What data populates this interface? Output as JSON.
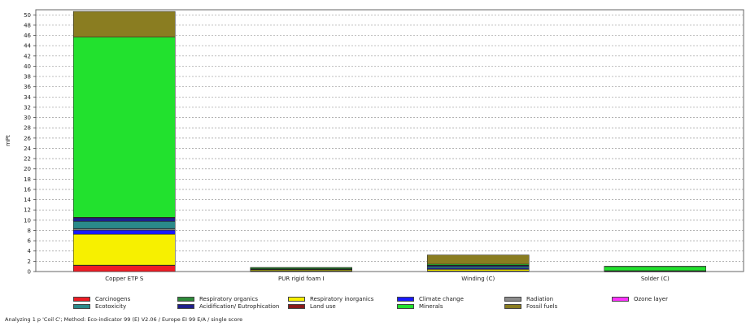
{
  "chart_data": {
    "type": "bar",
    "stacked": true,
    "ylabel": "mPt",
    "ylim": [
      0,
      51
    ],
    "yticks": [
      0,
      2,
      4,
      6,
      8,
      10,
      12,
      14,
      16,
      18,
      20,
      22,
      24,
      26,
      28,
      30,
      32,
      34,
      36,
      38,
      40,
      42,
      44,
      46,
      48,
      50
    ],
    "grid": true,
    "legend_position": "bottom",
    "categories": [
      "Copper ETP S",
      "PUR rigid foam I",
      "Winding (C)",
      "Solder (C)"
    ],
    "series": [
      {
        "name": "Carcinogens",
        "color": "#ee1c25",
        "values": [
          1.2,
          0.05,
          0.1,
          0.02
        ]
      },
      {
        "name": "Respiratory organics",
        "color": "#2e8b3a",
        "values": [
          0.05,
          0.05,
          0.02,
          0.01
        ]
      },
      {
        "name": "Respiratory inorganics",
        "color": "#f7f000",
        "values": [
          6.0,
          0.2,
          0.3,
          0.05
        ]
      },
      {
        "name": "Climate change",
        "color": "#1a1aff",
        "values": [
          0.8,
          0.1,
          0.2,
          0.02
        ]
      },
      {
        "name": "Radiation",
        "color": "#8c8c8c",
        "values": [
          0.3,
          0.02,
          0.05,
          0.01
        ]
      },
      {
        "name": "Ozone layer",
        "color": "#ff33ff",
        "values": [
          0.02,
          0.01,
          0.01,
          0.0
        ]
      },
      {
        "name": "Ecotoxicity",
        "color": "#2a8a8a",
        "values": [
          1.4,
          0.05,
          0.3,
          0.02
        ]
      },
      {
        "name": "Acidification/ Eutrophication",
        "color": "#1f1f8c",
        "values": [
          0.7,
          0.05,
          0.2,
          0.02
        ]
      },
      {
        "name": "Land use",
        "color": "#8b1a1a",
        "values": [
          0.1,
          0.02,
          0.05,
          0.01
        ]
      },
      {
        "name": "Minerals",
        "color": "#22e12e",
        "values": [
          35.1,
          0.2,
          0.2,
          0.85
        ]
      },
      {
        "name": "Fossil fuels",
        "color": "#8a7d21",
        "values": [
          5.0,
          0.05,
          1.8,
          0.02
        ]
      }
    ]
  },
  "footnote": "Analyzing 1 p 'Coil C';  Method: Eco-indicator 99 (E) V2.06 /  Europe EI 99 E/A / single score"
}
